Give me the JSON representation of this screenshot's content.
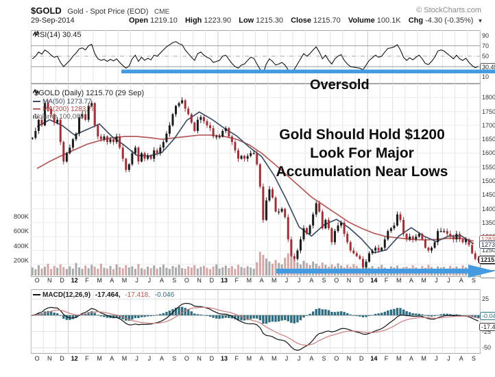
{
  "header": {
    "symbol": "$GOLD",
    "name": "Gold - Spot Price (EOD)",
    "exchange": "CME",
    "copyright": "© StockCharts.com",
    "date": "29-Sep-2014",
    "fields": [
      {
        "label": "Open",
        "value": "1219.10"
      },
      {
        "label": "High",
        "value": "1223.90"
      },
      {
        "label": "Low",
        "value": "1215.30"
      },
      {
        "label": "Close",
        "value": "1215.70"
      },
      {
        "label": "Volume",
        "value": "100.1K"
      },
      {
        "label": "Chg",
        "value": "-4.30 (-0.35%)"
      }
    ]
  },
  "rsi_pane": {
    "label": "RSI(14) 30.45",
    "value_box": "30.45",
    "oversold_text": "Oversold",
    "y_ticks": [
      {
        "label": "90",
        "v": 90
      },
      {
        "label": "70",
        "v": 70
      },
      {
        "label": "50",
        "v": 50
      },
      {
        "label": "10",
        "v": 10
      }
    ]
  },
  "main_pane": {
    "legend_title": "$GOLD (Daily) 1215.70 (29 Sep)",
    "legend_ma50": "MA(50) 1273.77",
    "legend_ma200": "MA(200) 1283.78",
    "legend_volume": "Volume 100,068",
    "box_ma200": "1283.78",
    "box_ma50": "1273.77",
    "box_close": "1215.70",
    "annotation_line1": "Gold Should Hold $1200",
    "annotation_line2": "Look For Major",
    "annotation_line3": "Accumulation Near Lows",
    "price_ticks": [
      {
        "label": "1800",
        "p": 1800
      },
      {
        "label": "1750",
        "p": 1750
      },
      {
        "label": "1700",
        "p": 1700
      },
      {
        "label": "1650",
        "p": 1650
      },
      {
        "label": "1600",
        "p": 1600
      },
      {
        "label": "1550",
        "p": 1550
      },
      {
        "label": "1500",
        "p": 1500
      },
      {
        "label": "1450",
        "p": 1450
      },
      {
        "label": "1400",
        "p": 1400
      },
      {
        "label": "1350",
        "p": 1350
      },
      {
        "label": "1300",
        "p": 1300
      },
      {
        "label": "1250",
        "p": 1250
      }
    ],
    "volume_ticks": [
      {
        "label": "800K",
        "v": 800
      },
      {
        "label": "600K",
        "v": 600
      },
      {
        "label": "400K",
        "v": 400
      },
      {
        "label": "200K",
        "v": 200
      }
    ]
  },
  "macd_pane": {
    "name": "MACD(12,26,9)",
    "value_macd": "-17.464,",
    "value_signal": "-17.418,",
    "value_hist": "-0.046",
    "box_hist": "-0.046",
    "box_macd": "-17.464",
    "y_ticks": [
      {
        "label": "25",
        "v": 25
      },
      {
        "label": "-25",
        "v": -25
      },
      {
        "label": "-50",
        "v": -50
      }
    ]
  },
  "x_axis": {
    "months": [
      "O",
      "N",
      "D",
      "12",
      "F",
      "M",
      "A",
      "M",
      "J",
      "J",
      "A",
      "S",
      "O",
      "N",
      "D",
      "13",
      "F",
      "M",
      "A",
      "M",
      "J",
      "J",
      "A",
      "S",
      "O",
      "N",
      "D",
      "14",
      "F",
      "M",
      "A",
      "M",
      "J",
      "J",
      "A",
      "S"
    ],
    "year_labels": [
      "12",
      "13",
      "14"
    ]
  },
  "colors": {
    "blue_annotation": "#459be0",
    "ma50": "#3d4e66",
    "ma200": "#b35959",
    "candle_up": "#1a1a1a",
    "candle_down": "#9e3039",
    "volume_up": "#a0a0a0",
    "volume_down": "#cf9d9d",
    "macd_hist": "#2f6e80",
    "macd_signal": "#c97c7c",
    "macd_line": "#111111"
  },
  "chart_data": [
    {
      "type": "line",
      "title": "RSI(14)",
      "panel": "top",
      "ylim": [
        0,
        100
      ],
      "gridlines_y": [
        70,
        50,
        30
      ],
      "x": "monthly Oct 2011 - Sep 2014, 4 samples per month (see x_axis.months)",
      "values": [
        45,
        50,
        58,
        54,
        62,
        58,
        52,
        48,
        50,
        38,
        30,
        36,
        42,
        50,
        56,
        64,
        66,
        62,
        70,
        73,
        55,
        45,
        42,
        44,
        40,
        44,
        41,
        45,
        38,
        32,
        27,
        31,
        45,
        52,
        40,
        48,
        42,
        46,
        43,
        52,
        50,
        56,
        62,
        68,
        72,
        76,
        78,
        74,
        72,
        62,
        55,
        48,
        42,
        55,
        58,
        52,
        48,
        45,
        38,
        40,
        42,
        50,
        52,
        44,
        36,
        30,
        27,
        33,
        35,
        42,
        48,
        46,
        35,
        25,
        18,
        35,
        45,
        40,
        33,
        35,
        38,
        33,
        24,
        20,
        25,
        35,
        45,
        55,
        50,
        55,
        62,
        68,
        58,
        45,
        52,
        42,
        35,
        45,
        50,
        53,
        42,
        35,
        30,
        29,
        28,
        27,
        24,
        33,
        42,
        47,
        52,
        48,
        50,
        58,
        65,
        66,
        68,
        72,
        62,
        48,
        42,
        47,
        43,
        48,
        52,
        45,
        36,
        34,
        40,
        48,
        60,
        62,
        60,
        55,
        50,
        45,
        52,
        45,
        42,
        46,
        38,
        32,
        28,
        30.45
      ],
      "last_value": 30.45,
      "annotations": [
        {
          "type": "horizontal-line-arrow",
          "y": 28,
          "color": "blue",
          "label": "Oversold",
          "starts_at_month_index": 7
        }
      ]
    },
    {
      "type": "candlestick",
      "title": "$GOLD Daily with MA(50), MA(200) and Volume",
      "panel": "main",
      "ylim": [
        1160,
        1850
      ],
      "x": "monthly Oct 2011 - Sep 2014, 4 samples per month (see x_axis.months)",
      "close": [
        1655,
        1680,
        1720,
        1700,
        1780,
        1760,
        1740,
        1710,
        1720,
        1640,
        1570,
        1600,
        1620,
        1650,
        1670,
        1730,
        1740,
        1720,
        1770,
        1780,
        1700,
        1660,
        1650,
        1660,
        1640,
        1650,
        1640,
        1660,
        1620,
        1580,
        1540,
        1560,
        1600,
        1620,
        1570,
        1600,
        1580,
        1590,
        1580,
        1610,
        1600,
        1620,
        1640,
        1670,
        1700,
        1740,
        1770,
        1780,
        1790,
        1760,
        1740,
        1710,
        1680,
        1720,
        1730,
        1715,
        1700,
        1690,
        1660,
        1660,
        1660,
        1680,
        1690,
        1660,
        1640,
        1610,
        1580,
        1590,
        1580,
        1590,
        1600,
        1600,
        1560,
        1480,
        1360,
        1430,
        1470,
        1440,
        1390,
        1390,
        1400,
        1370,
        1290,
        1230,
        1220,
        1250,
        1290,
        1330,
        1310,
        1340,
        1380,
        1420,
        1390,
        1330,
        1360,
        1330,
        1280,
        1320,
        1340,
        1350,
        1310,
        1280,
        1250,
        1240,
        1230,
        1220,
        1190,
        1210,
        1240,
        1250,
        1260,
        1250,
        1260,
        1290,
        1320,
        1330,
        1340,
        1380,
        1360,
        1310,
        1290,
        1300,
        1290,
        1300,
        1310,
        1290,
        1260,
        1250,
        1260,
        1280,
        1320,
        1320,
        1320,
        1310,
        1300,
        1290,
        1310,
        1290,
        1280,
        1290,
        1270,
        1240,
        1220,
        1215.7
      ],
      "ma50_monthly": [
        1695,
        1720,
        1700,
        1665,
        1685,
        1705,
        1660,
        1628,
        1592,
        1590,
        1602,
        1652,
        1718,
        1748,
        1722,
        1690,
        1662,
        1622,
        1588,
        1520,
        1432,
        1335,
        1302,
        1342,
        1362,
        1332,
        1292,
        1242,
        1252,
        1302,
        1332,
        1302,
        1282,
        1302,
        1303,
        1274
      ],
      "ma200_monthly": [
        1545,
        1570,
        1592,
        1612,
        1632,
        1645,
        1655,
        1660,
        1660,
        1656,
        1650,
        1655,
        1660,
        1665,
        1665,
        1660,
        1650,
        1630,
        1600,
        1562,
        1522,
        1482,
        1442,
        1412,
        1382,
        1352,
        1330,
        1312,
        1300,
        1295,
        1290,
        1288,
        1290,
        1294,
        1294,
        1284
      ],
      "volume_k": [
        110,
        85,
        140,
        95,
        120,
        160,
        90,
        130,
        105,
        150,
        115,
        88,
        125,
        95,
        170,
        110,
        90,
        135,
        100,
        145,
        120,
        92,
        160,
        105,
        95,
        130,
        88,
        150,
        115,
        98,
        140,
        110,
        125,
        90,
        155,
        100,
        85,
        120,
        100,
        135,
        95,
        115,
        150,
        105,
        90,
        130,
        110,
        145,
        100,
        92,
        125,
        108,
        140,
        96,
        118,
        132,
        104,
        88,
        122,
        150,
        95,
        110,
        135,
        102,
        128,
        90,
        145,
        115,
        100,
        125,
        108,
        92,
        180,
        320,
        280,
        230,
        190,
        160,
        210,
        170,
        150,
        240,
        300,
        260,
        220,
        180,
        150,
        200,
        170,
        140,
        190,
        160,
        130,
        175,
        145,
        120,
        150,
        125,
        165,
        135,
        110,
        145,
        120,
        155,
        130,
        100,
        140,
        115,
        105,
        130,
        95,
        120,
        145,
        108,
        92,
        125,
        110,
        135,
        98,
        115,
        120,
        100,
        140,
        110,
        90,
        130,
        105,
        145,
        115,
        95,
        125,
        108,
        118,
        96,
        132,
        104,
        122,
        98,
        138,
        112,
        102,
        126,
        94,
        100
      ],
      "last": {
        "close": 1215.7,
        "ma50": 1273.77,
        "ma200": 1283.78,
        "volume": 100068
      },
      "annotations": [
        {
          "type": "horizontal-line-arrow",
          "price": 1180,
          "color": "blue",
          "starts_at_month_index": 20
        },
        {
          "type": "text",
          "text": "Gold Should Hold $1200"
        },
        {
          "type": "text",
          "text": "Look For Major"
        },
        {
          "type": "text",
          "text": "Accumulation Near Lows"
        },
        {
          "type": "text",
          "text": "Oversold"
        }
      ]
    },
    {
      "type": "line+histogram",
      "title": "MACD(12,26,9)",
      "panel": "bottom",
      "ylim": [
        -60,
        30
      ],
      "derivation": "MACD/signal/histogram computed from the close series with EMA(12,26,9)",
      "last": {
        "macd": -17.464,
        "signal": -17.418,
        "hist": -0.046
      },
      "y_ticks": [
        25,
        -25,
        -50
      ]
    }
  ]
}
